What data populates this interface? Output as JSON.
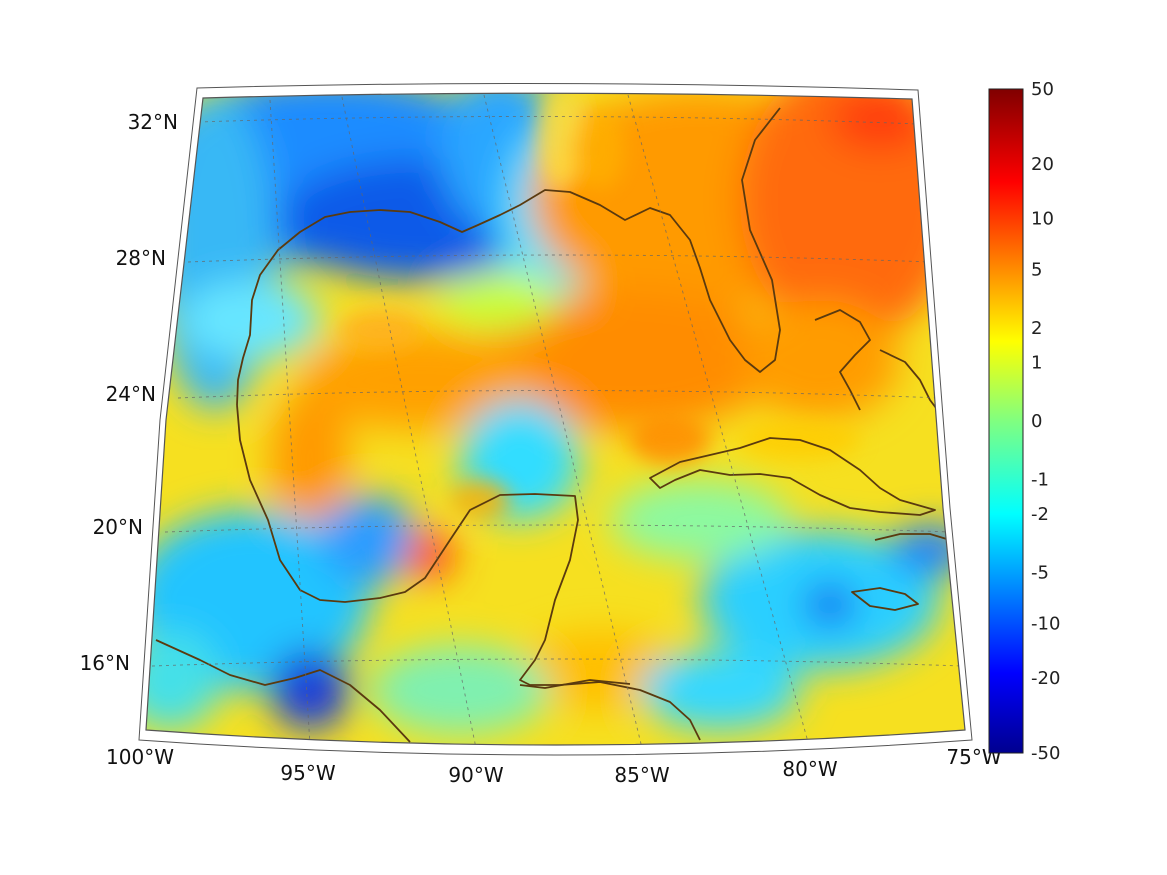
{
  "map": {
    "region": "Gulf of Mexico and Caribbean",
    "lon_range": [
      -100,
      -75
    ],
    "lat_range": [
      14,
      33
    ],
    "grid": true,
    "coastline_color": "#5a3a0f",
    "lat_labels": [
      {
        "lat": 32,
        "text": "32°N"
      },
      {
        "lat": 28,
        "text": "28°N"
      },
      {
        "lat": 24,
        "text": "24°N"
      },
      {
        "lat": 20,
        "text": "20°N"
      },
      {
        "lat": 16,
        "text": "16°N"
      }
    ],
    "lon_labels": [
      {
        "lon": -100,
        "text": "100°W"
      },
      {
        "lon": -95,
        "text": "95°W"
      },
      {
        "lon": -90,
        "text": "90°W"
      },
      {
        "lon": -85,
        "text": "85°W"
      },
      {
        "lon": -80,
        "text": "80°W"
      },
      {
        "lon": -75,
        "text": "75°W"
      }
    ]
  },
  "colorbar": {
    "colormap": "jet",
    "scale": "symmetric-log",
    "range": [
      -50,
      50
    ],
    "tick_labels": [
      "50",
      "20",
      "10",
      "5",
      "2",
      "1",
      "0",
      "-1",
      "-2",
      "-5",
      "-10",
      "-20",
      "-50"
    ],
    "tick_values": [
      50,
      20,
      10,
      5,
      2,
      1,
      0,
      -1,
      -2,
      -5,
      -10,
      -20,
      -50
    ],
    "placement": "right"
  }
}
